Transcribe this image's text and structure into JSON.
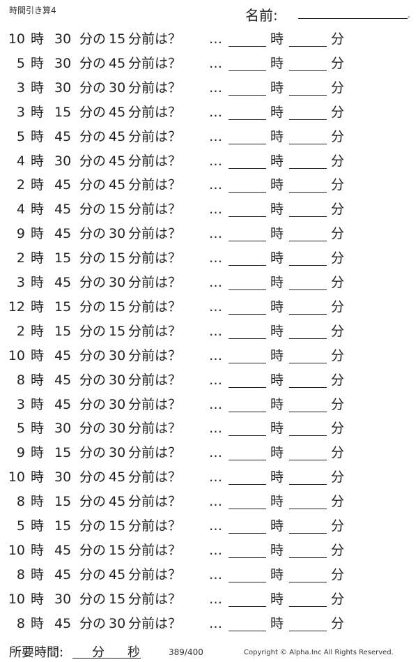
{
  "header": {
    "title": "時間引き算4",
    "name_label": "名前:",
    "name_end": "."
  },
  "labels": {
    "hour": "時",
    "min_of": "分の",
    "min_before": "分前は？",
    "dots": "…",
    "ans_hour": "時",
    "ans_min": "分"
  },
  "problems": [
    {
      "h": "10",
      "m": "30",
      "s": "15"
    },
    {
      "h": "5",
      "m": "30",
      "s": "45"
    },
    {
      "h": "3",
      "m": "30",
      "s": "30"
    },
    {
      "h": "3",
      "m": "15",
      "s": "45"
    },
    {
      "h": "5",
      "m": "45",
      "s": "45"
    },
    {
      "h": "4",
      "m": "30",
      "s": "45"
    },
    {
      "h": "2",
      "m": "45",
      "s": "45"
    },
    {
      "h": "4",
      "m": "45",
      "s": "15"
    },
    {
      "h": "9",
      "m": "45",
      "s": "30"
    },
    {
      "h": "2",
      "m": "15",
      "s": "15"
    },
    {
      "h": "3",
      "m": "45",
      "s": "30"
    },
    {
      "h": "12",
      "m": "15",
      "s": "15"
    },
    {
      "h": "2",
      "m": "15",
      "s": "15"
    },
    {
      "h": "10",
      "m": "45",
      "s": "30"
    },
    {
      "h": "8",
      "m": "45",
      "s": "30"
    },
    {
      "h": "3",
      "m": "45",
      "s": "30"
    },
    {
      "h": "5",
      "m": "30",
      "s": "30"
    },
    {
      "h": "9",
      "m": "15",
      "s": "30"
    },
    {
      "h": "10",
      "m": "30",
      "s": "45"
    },
    {
      "h": "8",
      "m": "15",
      "s": "45"
    },
    {
      "h": "5",
      "m": "15",
      "s": "15"
    },
    {
      "h": "10",
      "m": "45",
      "s": "15"
    },
    {
      "h": "8",
      "m": "45",
      "s": "45"
    },
    {
      "h": "10",
      "m": "30",
      "s": "15"
    },
    {
      "h": "8",
      "m": "45",
      "s": "30"
    }
  ],
  "footer": {
    "time_label": "所要時間:",
    "min": "分",
    "sec": "秒",
    "page": "389/400",
    "copyright": "Copyright ©  Alpha.Inc All Rights Reserved."
  }
}
